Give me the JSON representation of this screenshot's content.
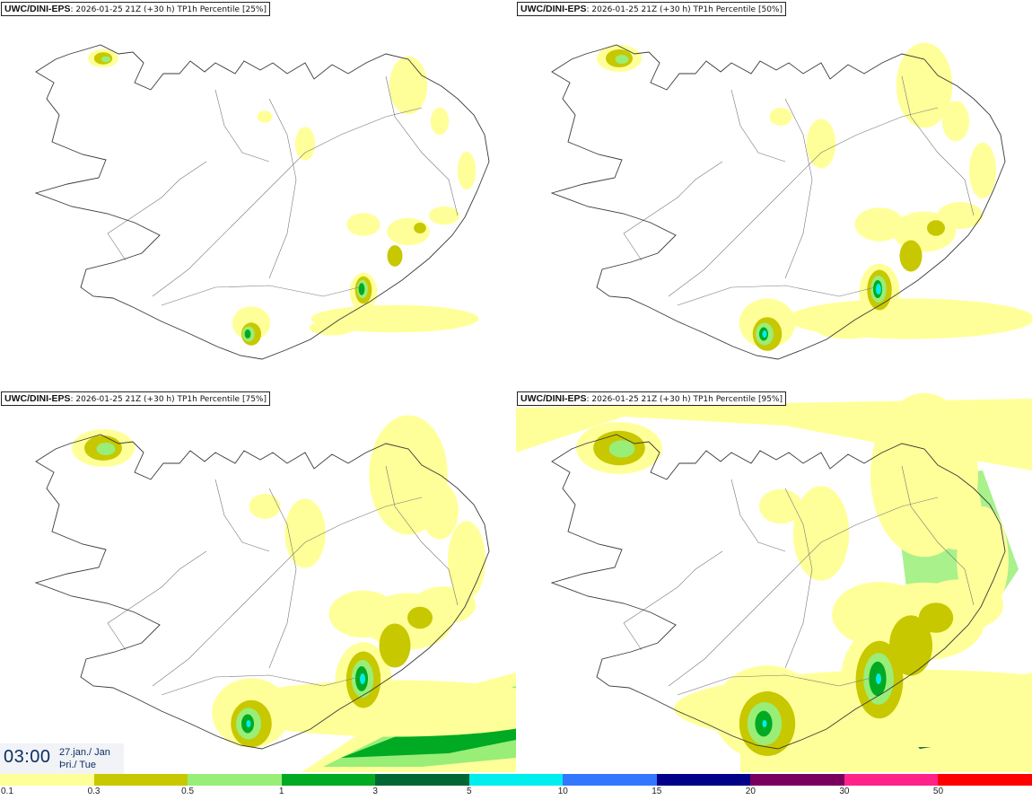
{
  "panels": [
    {
      "model": "UWC/DINI-EPS",
      "info": ": 2026-01-25 21Z (+30 h) TP1h Percentile [25%]",
      "level": 1
    },
    {
      "model": "UWC/DINI-EPS",
      "info": ": 2026-01-25 21Z (+30 h) TP1h Percentile [50%]",
      "level": 2
    },
    {
      "model": "UWC/DINI-EPS",
      "info": ": 2026-01-25 21Z (+30 h) TP1h Percentile [75%]",
      "level": 3
    },
    {
      "model": "UWC/DINI-EPS",
      "info": ": 2026-01-25 21Z (+30 h) TP1h Percentile [95%]",
      "level": 4
    }
  ],
  "time": {
    "clock": "03:00",
    "date": "27.jan./ Jan",
    "weekday": "Þri./ Tue"
  },
  "colorbar": {
    "colors": [
      "#ffff99",
      "#c8c800",
      "#99ee77",
      "#00aa22",
      "#006633",
      "#00eeee",
      "#3377ff",
      "#000088",
      "#7a0060",
      "#ff2288",
      "#ff0000"
    ],
    "ticks": [
      "0.1",
      "0.3",
      "0.5",
      "1",
      "3",
      "5",
      "10",
      "15",
      "20",
      "30",
      "50"
    ]
  },
  "palette": {
    "coast": "#3a3a3a",
    "roads": "#777777",
    "light": "#ffff99",
    "olive": "#c8c800",
    "lightgreen": "#99ee77",
    "green": "#00aa22",
    "darkgreen": "#006633",
    "cyan": "#00eeee"
  }
}
